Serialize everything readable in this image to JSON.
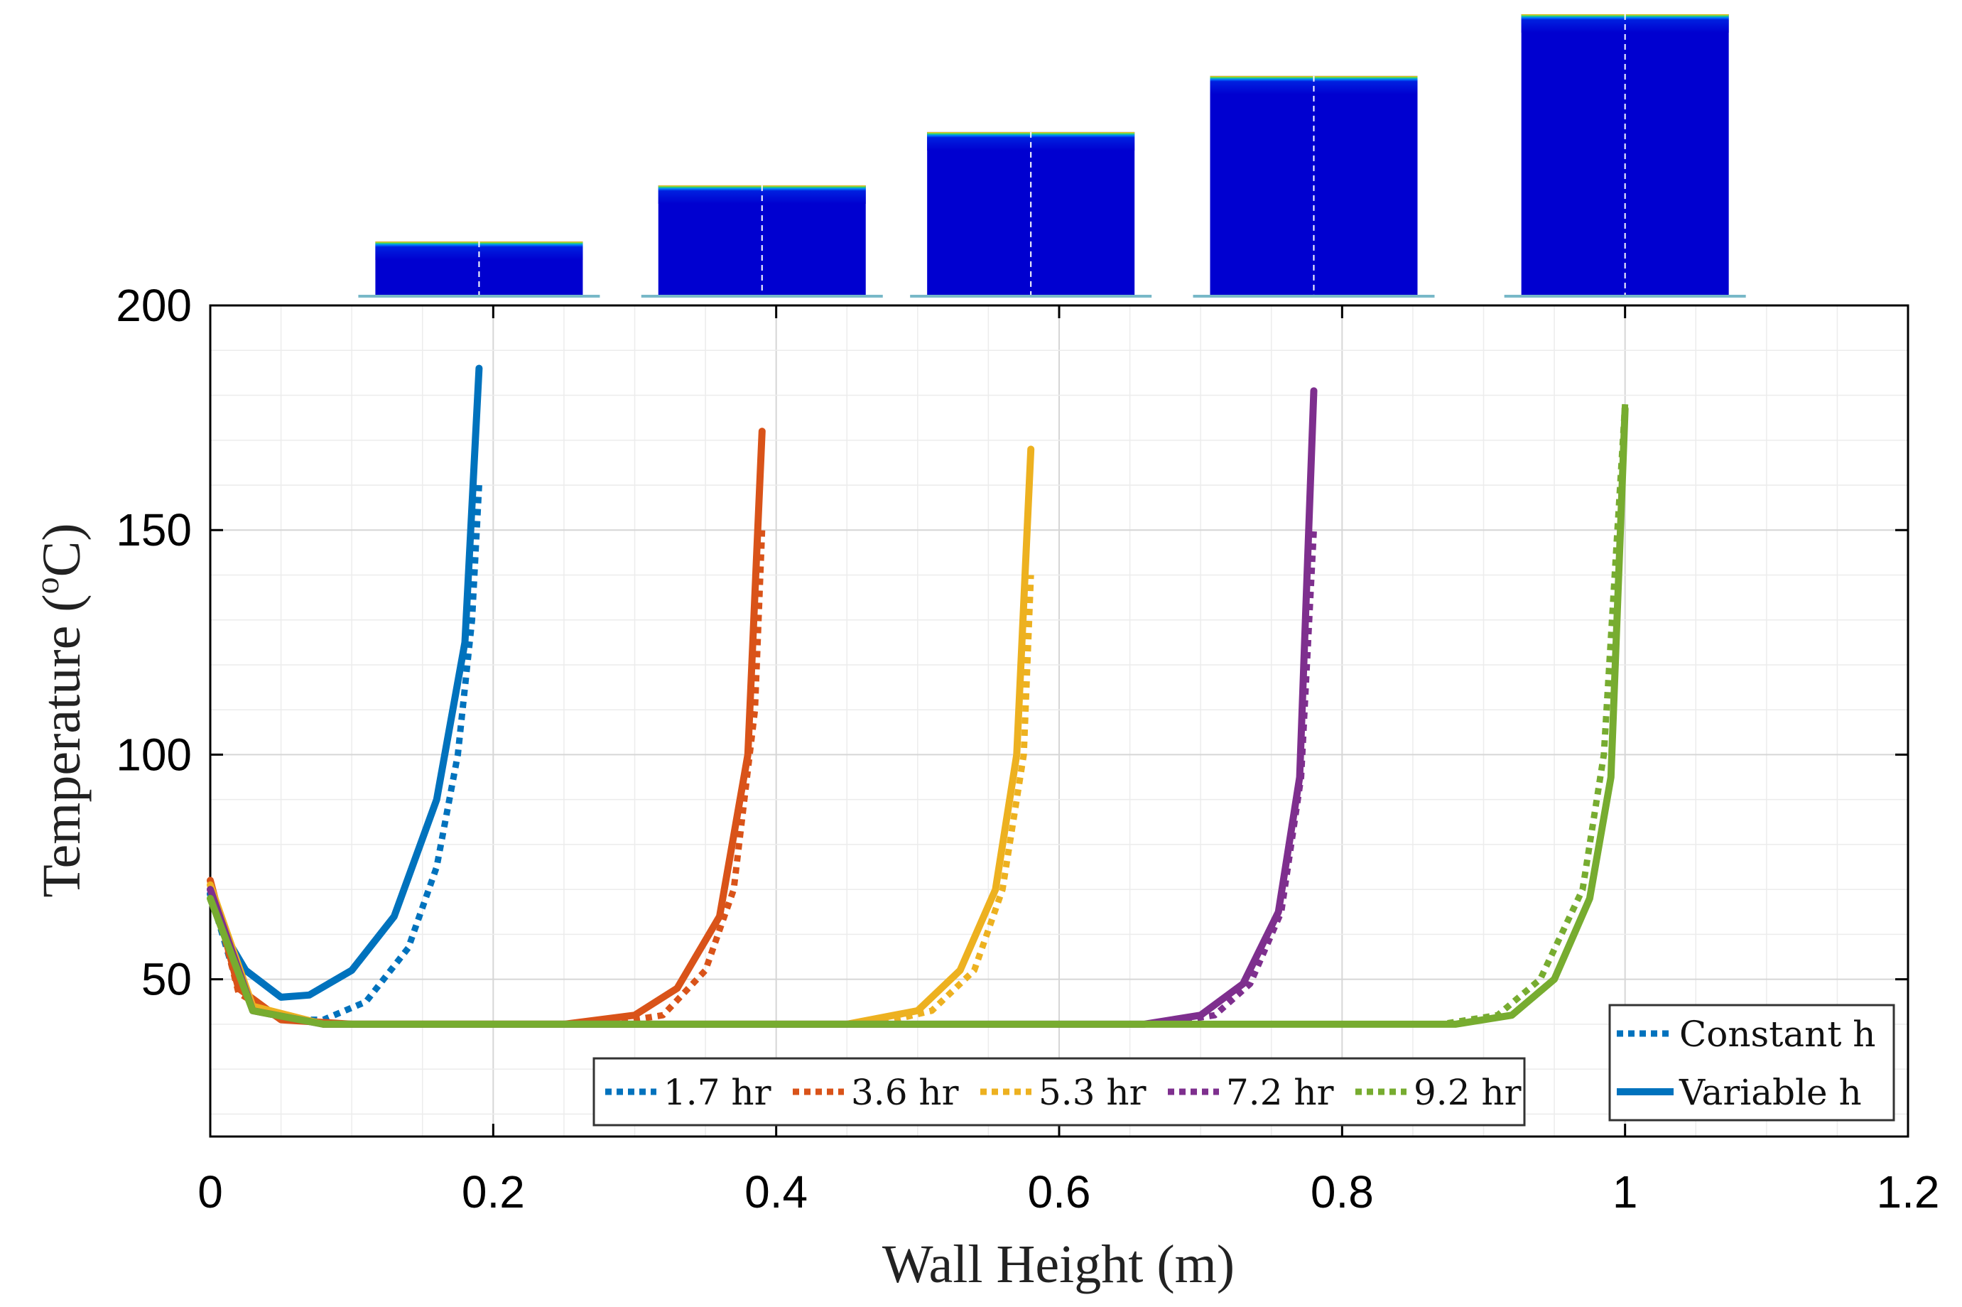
{
  "chart_data": {
    "type": "line",
    "xlabel": "Wall Height (m)",
    "ylabel": "Temperature (",
    "ylabel_sup": "o",
    "ylabel_unit": "C)",
    "xlim": [
      0,
      1.2
    ],
    "ylim": [
      15,
      200
    ],
    "xticks": [
      "0",
      "0.2",
      "0.4",
      "0.6",
      "0.8",
      "1",
      "1.2"
    ],
    "yticks": [
      "50",
      "100",
      "150",
      "200"
    ],
    "grid": true,
    "legend_times": {
      "placement": "bottom-center",
      "entries": [
        "1.7 hr",
        "3.6 hr",
        "5.3 hr",
        "7.2 hr",
        "9.2 hr"
      ]
    },
    "legend_style": {
      "placement": "bottom-right",
      "entries": [
        "Constant h",
        "Variable h"
      ]
    },
    "colors": [
      "#0072bd",
      "#d95319",
      "#edb120",
      "#7e2f8e",
      "#77ac30"
    ],
    "series": [
      {
        "name": "1.7 hr",
        "height": 0.19,
        "variable_h": [
          [
            0,
            69
          ],
          [
            0.01,
            60
          ],
          [
            0.025,
            52
          ],
          [
            0.05,
            46
          ],
          [
            0.07,
            46.5
          ],
          [
            0.1,
            52
          ],
          [
            0.13,
            64
          ],
          [
            0.16,
            90
          ],
          [
            0.18,
            125
          ],
          [
            0.19,
            186
          ]
        ],
        "constant_h": [
          [
            0,
            69
          ],
          [
            0.02,
            48
          ],
          [
            0.05,
            41
          ],
          [
            0.08,
            41
          ],
          [
            0.11,
            45
          ],
          [
            0.14,
            57
          ],
          [
            0.16,
            75
          ],
          [
            0.175,
            100
          ],
          [
            0.185,
            130
          ],
          [
            0.19,
            160
          ]
        ]
      },
      {
        "name": "3.6 hr",
        "height": 0.39,
        "variable_h": [
          [
            0,
            72
          ],
          [
            0.02,
            48
          ],
          [
            0.05,
            41
          ],
          [
            0.1,
            40
          ],
          [
            0.25,
            40
          ],
          [
            0.3,
            42
          ],
          [
            0.33,
            48
          ],
          [
            0.36,
            64
          ],
          [
            0.38,
            100
          ],
          [
            0.39,
            172
          ]
        ],
        "constant_h": [
          [
            0,
            72
          ],
          [
            0.02,
            47
          ],
          [
            0.05,
            41
          ],
          [
            0.1,
            40
          ],
          [
            0.28,
            40
          ],
          [
            0.32,
            42
          ],
          [
            0.35,
            52
          ],
          [
            0.37,
            70
          ],
          [
            0.385,
            110
          ],
          [
            0.39,
            150
          ]
        ]
      },
      {
        "name": "5.3 hr",
        "height": 0.58,
        "variable_h": [
          [
            0,
            71
          ],
          [
            0.03,
            44
          ],
          [
            0.08,
            40
          ],
          [
            0.45,
            40
          ],
          [
            0.5,
            43
          ],
          [
            0.53,
            52
          ],
          [
            0.555,
            70
          ],
          [
            0.57,
            100
          ],
          [
            0.58,
            168
          ]
        ],
        "constant_h": [
          [
            0,
            71
          ],
          [
            0.03,
            44
          ],
          [
            0.08,
            40
          ],
          [
            0.47,
            40
          ],
          [
            0.51,
            43
          ],
          [
            0.54,
            52
          ],
          [
            0.56,
            70
          ],
          [
            0.575,
            100
          ],
          [
            0.58,
            140
          ]
        ]
      },
      {
        "name": "7.2 hr",
        "height": 0.78,
        "variable_h": [
          [
            0,
            70
          ],
          [
            0.03,
            43
          ],
          [
            0.08,
            40
          ],
          [
            0.66,
            40
          ],
          [
            0.7,
            42
          ],
          [
            0.73,
            49
          ],
          [
            0.755,
            65
          ],
          [
            0.77,
            95
          ],
          [
            0.78,
            181
          ]
        ],
        "constant_h": [
          [
            0,
            70
          ],
          [
            0.03,
            43
          ],
          [
            0.08,
            40
          ],
          [
            0.67,
            40
          ],
          [
            0.71,
            42
          ],
          [
            0.735,
            49
          ],
          [
            0.757,
            65
          ],
          [
            0.771,
            95
          ],
          [
            0.78,
            150
          ]
        ]
      },
      {
        "name": "9.2 hr",
        "height": 1.0,
        "variable_h": [
          [
            0,
            68
          ],
          [
            0.03,
            43
          ],
          [
            0.08,
            40
          ],
          [
            0.88,
            40
          ],
          [
            0.92,
            42
          ],
          [
            0.95,
            50
          ],
          [
            0.975,
            68
          ],
          [
            0.99,
            95
          ],
          [
            1.0,
            177
          ]
        ],
        "constant_h": [
          [
            0,
            68
          ],
          [
            0.03,
            43
          ],
          [
            0.08,
            40
          ],
          [
            0.87,
            40
          ],
          [
            0.91,
            42
          ],
          [
            0.94,
            50
          ],
          [
            0.97,
            70
          ],
          [
            0.985,
            100
          ],
          [
            1.0,
            178
          ]
        ]
      }
    ]
  }
}
